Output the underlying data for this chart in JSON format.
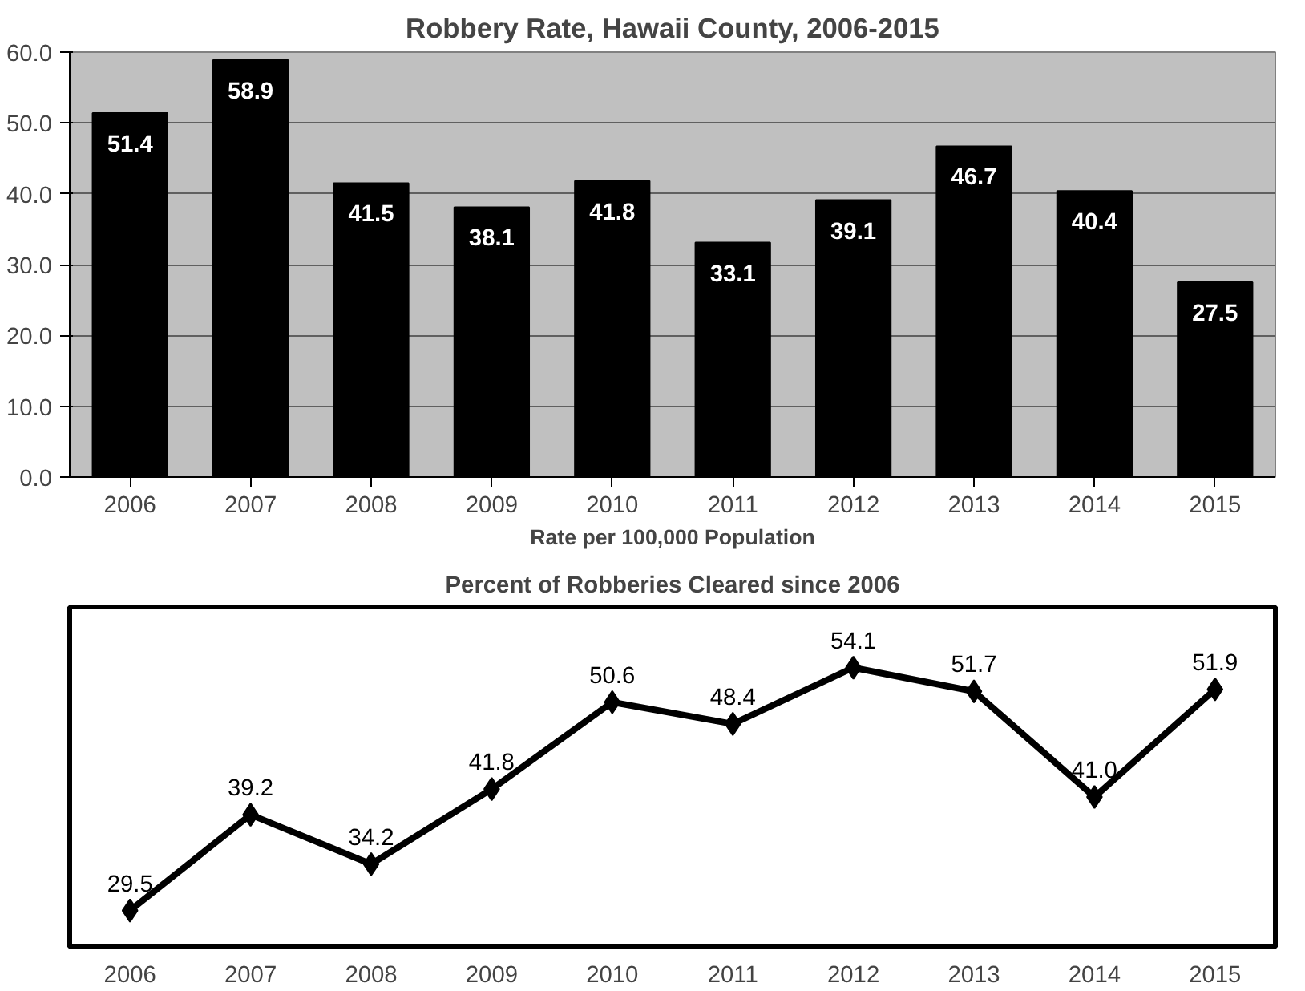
{
  "chart_data": [
    {
      "type": "bar",
      "title": "Robbery Rate, Hawaii County, 2006-2015",
      "xlabel": "Rate per 100,000 Population",
      "categories": [
        "2006",
        "2007",
        "2008",
        "2009",
        "2010",
        "2011",
        "2012",
        "2013",
        "2014",
        "2015"
      ],
      "values": [
        51.4,
        58.9,
        41.5,
        38.1,
        41.8,
        33.1,
        39.1,
        46.7,
        40.4,
        27.5
      ],
      "color": "#000000",
      "ylim": [
        0,
        60
      ],
      "yticks": [
        {
          "value": 0,
          "label": "0.0"
        },
        {
          "value": 10,
          "label": "10.0"
        },
        {
          "value": 20,
          "label": "20.0"
        },
        {
          "value": 30,
          "label": "30.0"
        },
        {
          "value": 40,
          "label": "40.0"
        },
        {
          "value": 50,
          "label": "50.0"
        },
        {
          "value": 60,
          "label": "60.0"
        }
      ],
      "grid": "y",
      "data_labels": true
    },
    {
      "type": "line",
      "title": "Percent of Robberies Cleared since 2006",
      "categories": [
        "2006",
        "2007",
        "2008",
        "2009",
        "2010",
        "2011",
        "2012",
        "2013",
        "2014",
        "2015"
      ],
      "values": [
        29.5,
        39.2,
        34.2,
        41.8,
        50.6,
        48.4,
        54.1,
        51.7,
        41.0,
        51.9
      ],
      "color": "#000000",
      "value_labels": [
        "29.5",
        "39.2",
        "34.2",
        "41.8",
        "50.6",
        "48.4",
        "54.1",
        "51.7",
        "41.0",
        "51.9"
      ],
      "marker": "diamond",
      "line_style": "solid",
      "tick_labels": "x"
    }
  ]
}
